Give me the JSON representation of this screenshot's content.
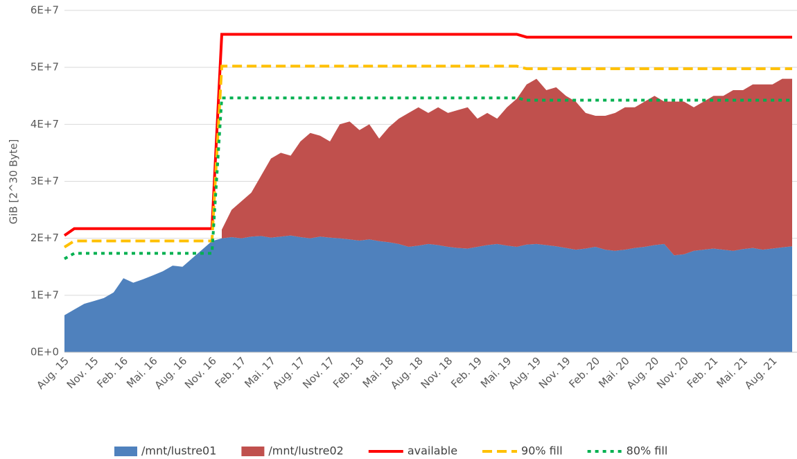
{
  "chart_data": {
    "type": "area",
    "stacked": true,
    "grid": true,
    "y_label": "GiB [2^30 Byte]",
    "ylim": [
      0,
      60000000.0
    ],
    "yticks": [
      {
        "value": 0,
        "label": "0E+0"
      },
      {
        "value": 10000000.0,
        "label": "1E+7"
      },
      {
        "value": 20000000.0,
        "label": "2E+7"
      },
      {
        "value": 30000000.0,
        "label": "3E+7"
      },
      {
        "value": 40000000.0,
        "label": "4E+7"
      },
      {
        "value": 50000000.0,
        "label": "5E+7"
      },
      {
        "value": 60000000.0,
        "label": "6E+7"
      }
    ],
    "categories": [
      "Aug. 15",
      null,
      null,
      "Nov. 15",
      null,
      null,
      "Feb. 16",
      null,
      null,
      "Mai. 16",
      null,
      null,
      "Aug. 16",
      null,
      null,
      "Nov. 16",
      null,
      null,
      "Feb. 17",
      null,
      null,
      "Mai. 17",
      null,
      null,
      "Aug. 17",
      null,
      null,
      "Nov. 17",
      null,
      null,
      "Feb. 18",
      null,
      null,
      "Mai. 18",
      null,
      null,
      "Aug. 18",
      null,
      null,
      "Nov. 18",
      null,
      null,
      "Feb. 19",
      null,
      null,
      "Mai. 19",
      null,
      null,
      "Aug. 19",
      null,
      null,
      "Nov. 19",
      null,
      null,
      "Feb. 20",
      null,
      null,
      "Mai. 20",
      null,
      null,
      "Aug. 20",
      null,
      null,
      "Nov. 20",
      null,
      null,
      "Feb. 21",
      null,
      null,
      "Mai. 21",
      null,
      null,
      "Aug. 21",
      null,
      null
    ],
    "series": [
      {
        "name": "/mnt/lustre01",
        "kind": "area",
        "color": "#4f81bd",
        "values": [
          6500000.0,
          7500000.0,
          8500000.0,
          9000000.0,
          9500000.0,
          10500000.0,
          13000000.0,
          12200000.0,
          12800000.0,
          13500000.0,
          14200000.0,
          15200000.0,
          15000000.0,
          16500000.0,
          18000000.0,
          19500000.0,
          20000000.0,
          20200000.0,
          20000000.0,
          20300000.0,
          20400000.0,
          20100000.0,
          20300000.0,
          20500000.0,
          20200000.0,
          20000000.0,
          20300000.0,
          20100000.0,
          20000000.0,
          19800000.0,
          19600000.0,
          19800000.0,
          19500000.0,
          19300000.0,
          19000000.0,
          18500000.0,
          18700000.0,
          19000000.0,
          18800000.0,
          18500000.0,
          18300000.0,
          18200000.0,
          18500000.0,
          18800000.0,
          19000000.0,
          18700000.0,
          18500000.0,
          18900000.0,
          19000000.0,
          18800000.0,
          18600000.0,
          18300000.0,
          18000000.0,
          18200000.0,
          18500000.0,
          18000000.0,
          17800000.0,
          18000000.0,
          18300000.0,
          18500000.0,
          18800000.0,
          19000000.0,
          17000000.0,
          17200000.0,
          17800000.0,
          18000000.0,
          18200000.0,
          18000000.0,
          17800000.0,
          18100000.0,
          18300000.0,
          18000000.0,
          18200000.0,
          18400000.0,
          18600000.0
        ]
      },
      {
        "name": "/mnt/lustre02",
        "kind": "area",
        "color": "#c0504d",
        "values": [
          null,
          null,
          null,
          null,
          null,
          null,
          null,
          null,
          null,
          null,
          null,
          null,
          null,
          null,
          null,
          null,
          1500000.0,
          4800000.0,
          6500000.0,
          7700000.0,
          10600000.0,
          13900000.0,
          14700000.0,
          14000000.0,
          16800000.0,
          18500000.0,
          17700000.0,
          16900000.0,
          20000000.0,
          20700000.0,
          19400000.0,
          20200000.0,
          18000000.0,
          20200000.0,
          22000000.0,
          23500000.0,
          24300000.0,
          23000000.0,
          24200000.0,
          23500000.0,
          24200000.0,
          24800000.0,
          22500000.0,
          23200000.0,
          22000000.0,
          24300000.0,
          26000000.0,
          28100000.0,
          29000000.0,
          27200000.0,
          27900000.0,
          26700000.0,
          26000000.0,
          23800000.0,
          23000000.0,
          23500000.0,
          24200000.0,
          25000000.0,
          24700000.0,
          25500000.0,
          26200000.0,
          25000000.0,
          27000000.0,
          26800000.0,
          25200000.0,
          26000000.0,
          26800000.0,
          27000000.0,
          28200000.0,
          27900000.0,
          28700000.0,
          29000000.0,
          28800000.0,
          29600000.0,
          29400000.0
        ]
      },
      {
        "name": "available",
        "kind": "line",
        "dash": "solid",
        "color": "#ff0000",
        "values": [
          20500000.0,
          21700000.0,
          21700000.0,
          21700000.0,
          21700000.0,
          21700000.0,
          21700000.0,
          21700000.0,
          21700000.0,
          21700000.0,
          21700000.0,
          21700000.0,
          21700000.0,
          21700000.0,
          21700000.0,
          21700000.0,
          55800000.0,
          55800000.0,
          55800000.0,
          55800000.0,
          55800000.0,
          55800000.0,
          55800000.0,
          55800000.0,
          55800000.0,
          55800000.0,
          55800000.0,
          55800000.0,
          55800000.0,
          55800000.0,
          55800000.0,
          55800000.0,
          55800000.0,
          55800000.0,
          55800000.0,
          55800000.0,
          55800000.0,
          55800000.0,
          55800000.0,
          55800000.0,
          55800000.0,
          55800000.0,
          55800000.0,
          55800000.0,
          55800000.0,
          55800000.0,
          55800000.0,
          55300000.0,
          55300000.0,
          55300000.0,
          55300000.0,
          55300000.0,
          55300000.0,
          55300000.0,
          55300000.0,
          55300000.0,
          55300000.0,
          55300000.0,
          55300000.0,
          55300000.0,
          55300000.0,
          55300000.0,
          55300000.0,
          55300000.0,
          55300000.0,
          55300000.0,
          55300000.0,
          55300000.0,
          55300000.0,
          55300000.0,
          55300000.0,
          55300000.0,
          55300000.0,
          55300000.0,
          55300000.0
        ]
      },
      {
        "name": "90% fill",
        "kind": "line",
        "dash": "dashed",
        "color": "#ffc000",
        "values": [
          18450000.0,
          19530000.0,
          19530000.0,
          19530000.0,
          19530000.0,
          19530000.0,
          19530000.0,
          19530000.0,
          19530000.0,
          19530000.0,
          19530000.0,
          19530000.0,
          19530000.0,
          19530000.0,
          19530000.0,
          19530000.0,
          50220000.0,
          50220000.0,
          50220000.0,
          50220000.0,
          50220000.0,
          50220000.0,
          50220000.0,
          50220000.0,
          50220000.0,
          50220000.0,
          50220000.0,
          50220000.0,
          50220000.0,
          50220000.0,
          50220000.0,
          50220000.0,
          50220000.0,
          50220000.0,
          50220000.0,
          50220000.0,
          50220000.0,
          50220000.0,
          50220000.0,
          50220000.0,
          50220000.0,
          50220000.0,
          50220000.0,
          50220000.0,
          50220000.0,
          50220000.0,
          50220000.0,
          49770000.0,
          49770000.0,
          49770000.0,
          49770000.0,
          49770000.0,
          49770000.0,
          49770000.0,
          49770000.0,
          49770000.0,
          49770000.0,
          49770000.0,
          49770000.0,
          49770000.0,
          49770000.0,
          49770000.0,
          49770000.0,
          49770000.0,
          49770000.0,
          49770000.0,
          49770000.0,
          49770000.0,
          49770000.0,
          49770000.0,
          49770000.0,
          49770000.0,
          49770000.0,
          49770000.0,
          49770000.0
        ]
      },
      {
        "name": "80% fill",
        "kind": "line",
        "dash": "dotted",
        "color": "#00b050",
        "values": [
          16400000.0,
          17360000.0,
          17360000.0,
          17360000.0,
          17360000.0,
          17360000.0,
          17360000.0,
          17360000.0,
          17360000.0,
          17360000.0,
          17360000.0,
          17360000.0,
          17360000.0,
          17360000.0,
          17360000.0,
          17360000.0,
          44640000.0,
          44640000.0,
          44640000.0,
          44640000.0,
          44640000.0,
          44640000.0,
          44640000.0,
          44640000.0,
          44640000.0,
          44640000.0,
          44640000.0,
          44640000.0,
          44640000.0,
          44640000.0,
          44640000.0,
          44640000.0,
          44640000.0,
          44640000.0,
          44640000.0,
          44640000.0,
          44640000.0,
          44640000.0,
          44640000.0,
          44640000.0,
          44640000.0,
          44640000.0,
          44640000.0,
          44640000.0,
          44640000.0,
          44640000.0,
          44640000.0,
          44240000.0,
          44240000.0,
          44240000.0,
          44240000.0,
          44240000.0,
          44240000.0,
          44240000.0,
          44240000.0,
          44240000.0,
          44240000.0,
          44240000.0,
          44240000.0,
          44240000.0,
          44240000.0,
          44240000.0,
          44240000.0,
          44240000.0,
          44240000.0,
          44240000.0,
          44240000.0,
          44240000.0,
          44240000.0,
          44240000.0,
          44240000.0,
          44240000.0,
          44240000.0,
          44240000.0,
          44240000.0
        ]
      }
    ]
  }
}
